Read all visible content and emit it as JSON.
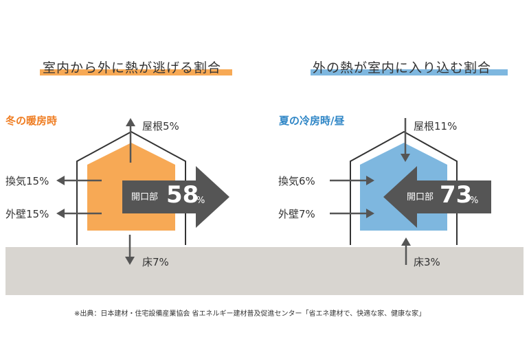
{
  "left": {
    "title": "室内から外に熱が逃げる割合",
    "season": "冬の暖房時",
    "roof": "屋根5%",
    "vent": "換気15%",
    "wall": "外壁15%",
    "floor": "床7%",
    "opening_label": "開口部",
    "opening_value": "58",
    "opening_unit": "%"
  },
  "right": {
    "title": "外の熱が室内に入り込む割合",
    "season": "夏の冷房時/昼",
    "roof": "屋根11%",
    "vent": "換気6%",
    "wall": "外壁7%",
    "floor": "床3%",
    "opening_label": "開口部",
    "opening_value": "73",
    "opening_unit": "%"
  },
  "source_note": "※出典：日本建材・住宅設備産業協会 省エネルギー建材普及促進センター「省エネ建材で、快適な家、健康な家」",
  "colors": {
    "warm": "#f7a955",
    "warm_text": "#ef7d22",
    "cool": "#7eb7df",
    "cool_text": "#2f86c6",
    "arrow": "#555555",
    "ground": "#d8d5d0",
    "outline": "#333333"
  }
}
